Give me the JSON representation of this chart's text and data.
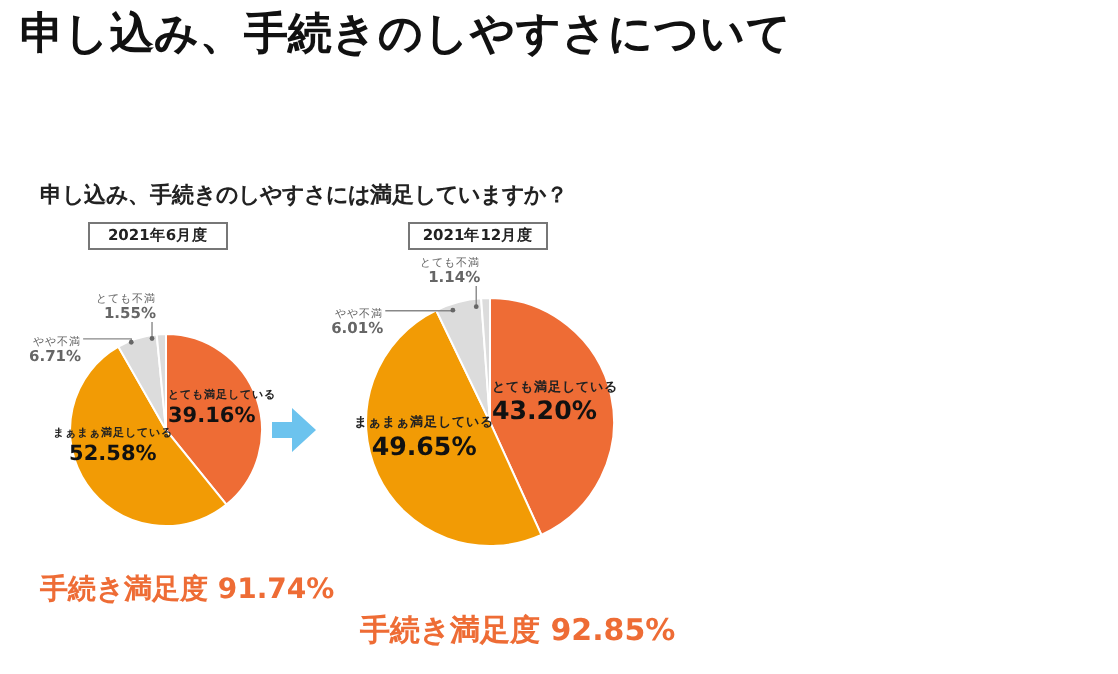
{
  "chart_data": [
    {
      "type": "pie",
      "title": "2021年6月度",
      "categories": [
        "とても満足している",
        "まぁまぁ満足している",
        "やや不満",
        "とても不満"
      ],
      "values": [
        39.16,
        52.58,
        6.71,
        1.55
      ],
      "value_labels": [
        "39.16%",
        "52.58%",
        "6.71%",
        "1.55%"
      ],
      "colors": [
        "#ee6c35",
        "#f29b05",
        "#dcdcdc",
        "#dcdcdc"
      ],
      "annotations": [
        "申し込み、手続きのしやすさについて",
        "申し込み、手続きのしやすさには満足していますか？",
        "手続き満足度 91.74%"
      ]
    },
    {
      "type": "pie",
      "title": "2021年12月度",
      "categories": [
        "とても満足している",
        "まぁまぁ満足している",
        "やや不満",
        "とても不満"
      ],
      "values": [
        43.2,
        49.65,
        6.01,
        1.14
      ],
      "value_labels": [
        "43.20%",
        "49.65%",
        "6.01%",
        "1.14%"
      ],
      "colors": [
        "#ee6c35",
        "#f29b05",
        "#dcdcdc",
        "#dcdcdc"
      ],
      "annotations": [
        "手続き満足度 92.85%"
      ]
    }
  ]
}
